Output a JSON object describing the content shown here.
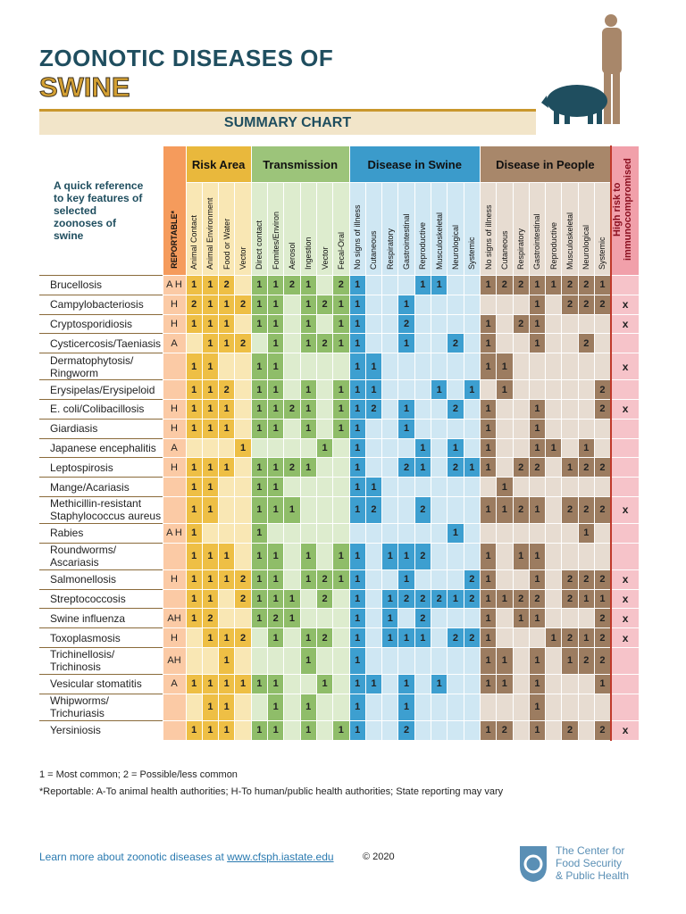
{
  "header": {
    "title_line1": "ZOONOTIC DISEASES OF",
    "title_line2": "SWINE",
    "subtitle": "SUMMARY CHART"
  },
  "intro": "A quick reference to key features of selected zoonoses of swine",
  "table": {
    "reportable_header": "REPORTABLE*",
    "immuno_header": "High risk to immunocompromised",
    "groups": [
      {
        "name": "Risk Area",
        "columns": [
          "Animal Contact",
          "Animal Environment",
          "Food or Water",
          "Vector"
        ]
      },
      {
        "name": "Transmission",
        "columns": [
          "Direct contact",
          "Fomites/Environ",
          "Aerosol",
          "Ingestion",
          "Vector",
          "Fecal-Oral"
        ]
      },
      {
        "name": "Disease in Swine",
        "columns": [
          "No signs of illness",
          "Cutaneous",
          "Respiratory",
          "Gastrointestinal",
          "Reproductive",
          "Musculoskeletal",
          "Neurological",
          "Systemic"
        ]
      },
      {
        "name": "Disease in People",
        "columns": [
          "No signs of illness",
          "Cutaneous",
          "Respiratory",
          "Gastrointestinal",
          "Reproductive",
          "Musculoskeletal",
          "Neurological",
          "Systemic"
        ]
      }
    ],
    "rows": [
      {
        "name": [
          "Brucellosis"
        ],
        "reportable": "A H",
        "cells": [
          1,
          1,
          2,
          null,
          1,
          1,
          2,
          1,
          null,
          2,
          1,
          null,
          null,
          null,
          1,
          1,
          null,
          null,
          1,
          2,
          2,
          1,
          1,
          2,
          2,
          1
        ],
        "immuno": null
      },
      {
        "name": [
          "Campylobacteriosis"
        ],
        "reportable": "H",
        "cells": [
          2,
          1,
          1,
          2,
          1,
          1,
          null,
          1,
          2,
          1,
          1,
          null,
          null,
          1,
          null,
          null,
          null,
          null,
          null,
          null,
          null,
          1,
          null,
          2,
          2,
          2
        ],
        "immuno": "x"
      },
      {
        "name": [
          "Cryptosporidiosis"
        ],
        "reportable": "H",
        "cells": [
          1,
          1,
          1,
          null,
          1,
          1,
          null,
          1,
          null,
          1,
          1,
          null,
          null,
          2,
          null,
          null,
          null,
          null,
          1,
          null,
          2,
          1,
          null,
          null,
          null,
          null
        ],
        "immuno": "x"
      },
      {
        "name": [
          "Cysticercosis/Taeniasis"
        ],
        "reportable": "A",
        "cells": [
          null,
          1,
          1,
          2,
          null,
          1,
          null,
          1,
          2,
          1,
          1,
          null,
          null,
          1,
          null,
          null,
          2,
          null,
          1,
          null,
          null,
          1,
          null,
          null,
          2,
          null
        ],
        "immuno": null
      },
      {
        "name": [
          "Dermatophytosis/",
          "Ringworm"
        ],
        "reportable": null,
        "cells": [
          1,
          1,
          null,
          null,
          1,
          1,
          null,
          null,
          null,
          null,
          1,
          1,
          null,
          null,
          null,
          null,
          null,
          null,
          1,
          1,
          null,
          null,
          null,
          null,
          null,
          null
        ],
        "immuno": "x"
      },
      {
        "name": [
          "Erysipelas/Erysipeloid"
        ],
        "reportable": null,
        "cells": [
          1,
          1,
          2,
          null,
          1,
          1,
          null,
          1,
          null,
          1,
          1,
          1,
          null,
          null,
          null,
          1,
          null,
          1,
          null,
          1,
          null,
          null,
          null,
          null,
          null,
          2
        ],
        "immuno": null
      },
      {
        "name": [
          "E. coli/Colibacillosis"
        ],
        "reportable": "H",
        "cells": [
          1,
          1,
          1,
          null,
          1,
          1,
          2,
          1,
          null,
          1,
          1,
          2,
          null,
          1,
          null,
          null,
          2,
          null,
          1,
          null,
          null,
          1,
          null,
          null,
          null,
          2
        ],
        "immuno": "x"
      },
      {
        "name": [
          "Giardiasis"
        ],
        "reportable": "H",
        "cells": [
          1,
          1,
          1,
          null,
          1,
          1,
          null,
          1,
          null,
          1,
          1,
          null,
          null,
          1,
          null,
          null,
          null,
          null,
          1,
          null,
          null,
          1,
          null,
          null,
          null,
          null
        ],
        "immuno": null
      },
      {
        "name": [
          "Japanese encephalitis"
        ],
        "reportable": "A",
        "cells": [
          null,
          null,
          null,
          1,
          null,
          null,
          null,
          null,
          1,
          null,
          1,
          null,
          null,
          null,
          1,
          null,
          1,
          null,
          1,
          null,
          null,
          1,
          1,
          null,
          1,
          null
        ],
        "immuno": null
      },
      {
        "name": [
          "Leptospirosis"
        ],
        "reportable": "H",
        "cells": [
          1,
          1,
          1,
          null,
          1,
          1,
          2,
          1,
          null,
          null,
          1,
          null,
          null,
          2,
          1,
          null,
          2,
          1,
          1,
          null,
          2,
          2,
          null,
          1,
          2,
          2
        ],
        "immuno": null
      },
      {
        "name": [
          "Mange/Acariasis"
        ],
        "reportable": null,
        "cells": [
          1,
          1,
          null,
          null,
          1,
          1,
          null,
          null,
          null,
          null,
          1,
          1,
          null,
          null,
          null,
          null,
          null,
          null,
          null,
          1,
          null,
          null,
          null,
          null,
          null,
          null
        ],
        "immuno": null
      },
      {
        "name": [
          "Methicillin-resistant",
          "Staphylococcus aureus"
        ],
        "reportable": null,
        "cells": [
          1,
          1,
          null,
          null,
          1,
          1,
          1,
          null,
          null,
          null,
          1,
          2,
          null,
          null,
          2,
          null,
          null,
          null,
          1,
          1,
          2,
          1,
          null,
          2,
          2,
          2
        ],
        "immuno": "x"
      },
      {
        "name": [
          "Rabies"
        ],
        "reportable": "A H",
        "cells": [
          1,
          null,
          null,
          null,
          1,
          null,
          null,
          null,
          null,
          null,
          null,
          null,
          null,
          null,
          null,
          null,
          1,
          null,
          null,
          null,
          null,
          null,
          null,
          null,
          1,
          null
        ],
        "immuno": null
      },
      {
        "name": [
          "Roundworms/",
          "Ascariasis"
        ],
        "reportable": null,
        "cells": [
          1,
          1,
          1,
          null,
          1,
          1,
          null,
          1,
          null,
          1,
          1,
          null,
          1,
          1,
          2,
          null,
          null,
          null,
          1,
          null,
          1,
          1,
          null,
          null,
          null,
          null
        ],
        "immuno": null
      },
      {
        "name": [
          "Salmonellosis"
        ],
        "reportable": "H",
        "cells": [
          1,
          1,
          1,
          2,
          1,
          1,
          null,
          1,
          2,
          1,
          1,
          null,
          null,
          1,
          null,
          null,
          null,
          2,
          1,
          null,
          null,
          1,
          null,
          2,
          2,
          2
        ],
        "immuno": "x"
      },
      {
        "name": [
          "Streptococcosis"
        ],
        "reportable": null,
        "cells": [
          1,
          1,
          null,
          2,
          1,
          1,
          1,
          null,
          2,
          null,
          1,
          null,
          1,
          2,
          2,
          2,
          1,
          2,
          1,
          1,
          2,
          2,
          null,
          2,
          1,
          1
        ],
        "immuno": "x"
      },
      {
        "name": [
          "Swine influenza"
        ],
        "reportable": "AH",
        "cells": [
          1,
          2,
          null,
          null,
          1,
          2,
          1,
          null,
          null,
          null,
          1,
          null,
          1,
          null,
          2,
          null,
          null,
          null,
          1,
          null,
          1,
          1,
          null,
          null,
          null,
          2
        ],
        "immuno": "x"
      },
      {
        "name": [
          "Toxoplasmosis"
        ],
        "reportable": "H",
        "cells": [
          null,
          1,
          1,
          2,
          null,
          1,
          null,
          1,
          2,
          null,
          1,
          null,
          1,
          1,
          1,
          null,
          2,
          2,
          1,
          null,
          null,
          null,
          1,
          2,
          1,
          2
        ],
        "immuno": "x"
      },
      {
        "name": [
          "Trichinellosis/",
          "Trichinosis"
        ],
        "reportable": "AH",
        "cells": [
          null,
          null,
          1,
          null,
          null,
          null,
          null,
          1,
          null,
          null,
          1,
          null,
          null,
          null,
          null,
          null,
          null,
          null,
          1,
          1,
          null,
          1,
          null,
          1,
          2,
          2
        ],
        "immuno": null
      },
      {
        "name": [
          "Vesicular stomatitis"
        ],
        "reportable": "A",
        "cells": [
          1,
          1,
          1,
          1,
          1,
          1,
          null,
          null,
          1,
          null,
          1,
          1,
          null,
          1,
          null,
          1,
          null,
          null,
          1,
          1,
          null,
          1,
          null,
          null,
          null,
          1
        ],
        "immuno": null
      },
      {
        "name": [
          "Whipworms/",
          "Trichuriasis"
        ],
        "reportable": null,
        "cells": [
          null,
          1,
          1,
          null,
          null,
          1,
          null,
          1,
          null,
          null,
          1,
          null,
          null,
          1,
          null,
          null,
          null,
          null,
          null,
          null,
          null,
          1,
          null,
          null,
          null,
          null
        ],
        "immuno": null
      },
      {
        "name": [
          "Yersiniosis"
        ],
        "reportable": null,
        "cells": [
          1,
          1,
          1,
          null,
          1,
          1,
          null,
          1,
          null,
          1,
          1,
          null,
          null,
          2,
          null,
          null,
          null,
          null,
          1,
          2,
          null,
          1,
          null,
          2,
          null,
          2
        ],
        "immuno": "x"
      }
    ]
  },
  "footer": {
    "legend": "1 = Most common;  2 = Possible/less common",
    "note": "*Reportable:   A-To animal health authorities; H-To human/public health authorities; State reporting may vary",
    "learn_more": "Learn more about zoonotic diseases at",
    "link": "www.cfsph.iastate.edu",
    "copyright": "© 2020",
    "logo": [
      "The Center for",
      "Food Security",
      "& Public Health"
    ]
  }
}
